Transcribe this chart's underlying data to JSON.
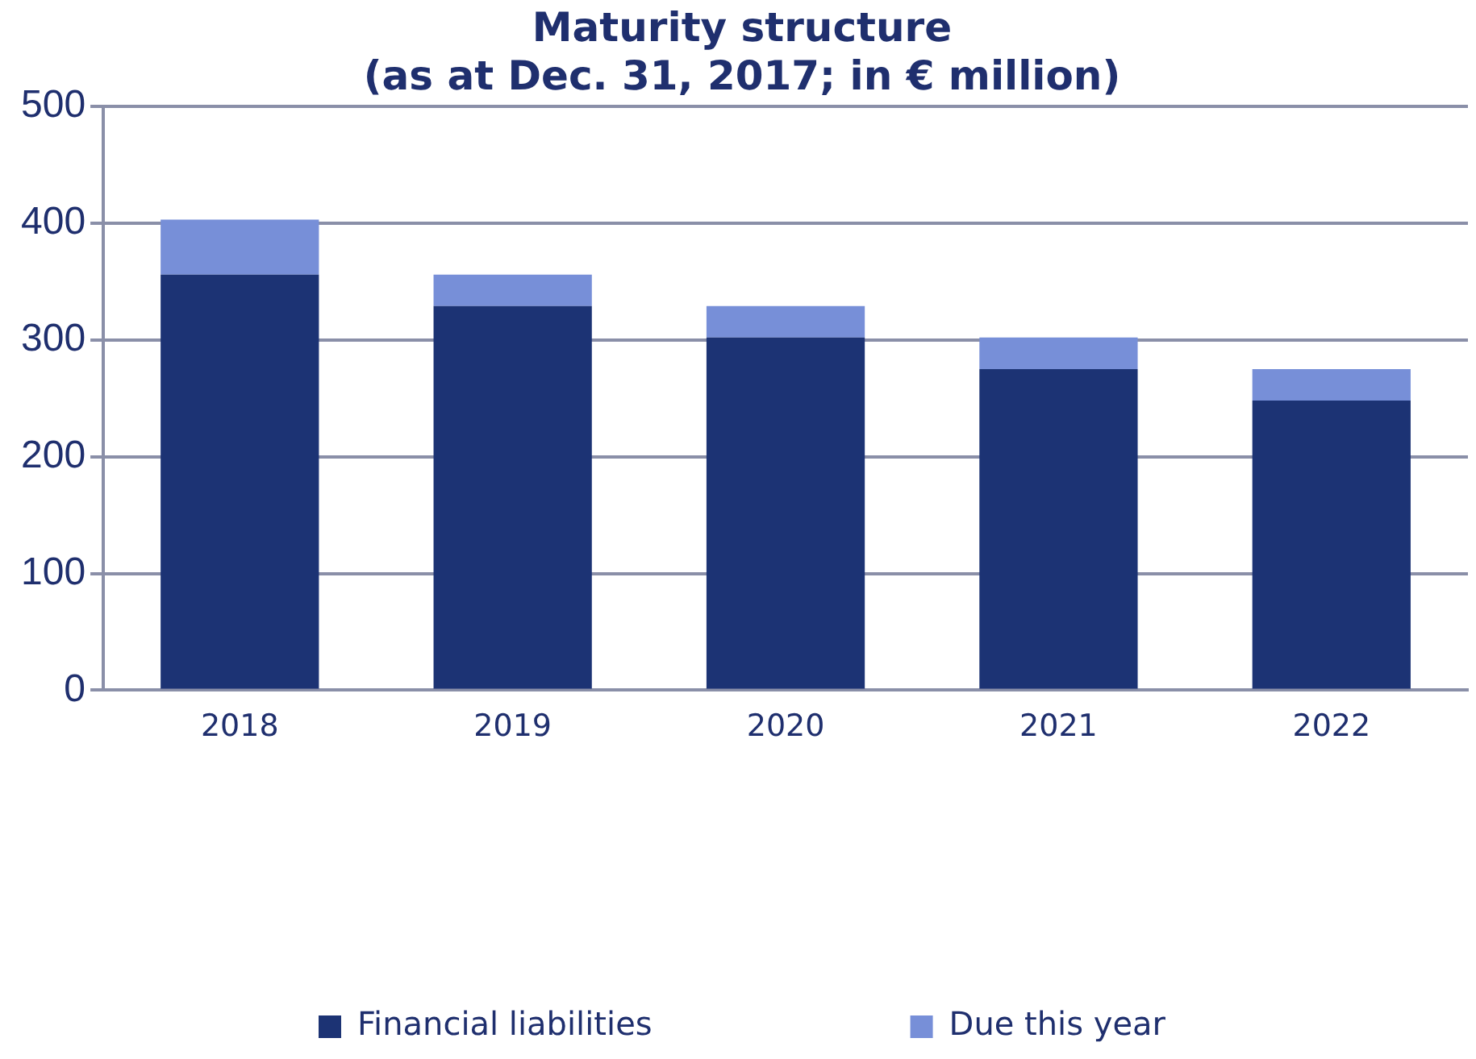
{
  "chart_data": {
    "type": "bar",
    "title": [
      "Maturity structure",
      "(as at Dec. 31, 2017; in € million)"
    ],
    "categories": [
      "2018",
      "2019",
      "2020",
      "2021",
      "2022"
    ],
    "stacked": true,
    "series": [
      {
        "name": "Financial liabilities",
        "color": "#1c3374",
        "values": [
          356,
          329,
          302,
          275,
          248
        ]
      },
      {
        "name": "Due this year",
        "color": "#778fd8",
        "values": [
          47,
          27,
          27,
          27,
          27
        ]
      }
    ],
    "ylim": [
      0,
      500
    ],
    "yticks": [
      0,
      100,
      200,
      300,
      400,
      500
    ],
    "grid": "y",
    "legend": "bottom"
  }
}
